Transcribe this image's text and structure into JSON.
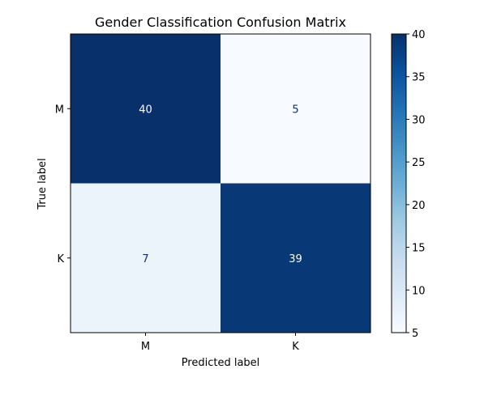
{
  "chart_data": {
    "type": "heatmap",
    "title": "Gender Classification Confusion Matrix",
    "xlabel": "Predicted label",
    "ylabel": "True label",
    "x_categories": [
      "M",
      "K"
    ],
    "y_categories": [
      "M",
      "K"
    ],
    "values": [
      [
        40,
        5
      ],
      [
        7,
        39
      ]
    ],
    "colormap": "Blues",
    "colorbar": {
      "min": 5,
      "max": 40,
      "ticks": [
        5,
        10,
        15,
        20,
        25,
        30,
        35,
        40
      ]
    },
    "colors": {
      "low": "#f7fbff",
      "high": "#08306b",
      "text_on_dark": "#f7fbff",
      "text_on_light": "#08306b"
    }
  }
}
